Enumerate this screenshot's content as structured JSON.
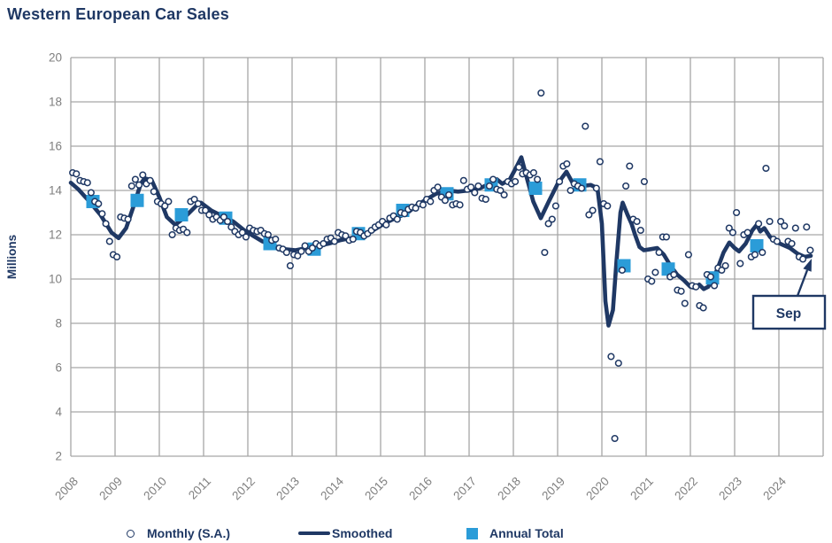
{
  "title": "Western European Car Sales",
  "colors": {
    "navy": "#1f3864",
    "annual_blue": "#2b9cd8",
    "gridline": "#a6a6a6",
    "tick_text": "#7f7f7f",
    "background": "#ffffff"
  },
  "legend": {
    "monthly_label": "Monthly (S.A.)",
    "smoothed_label": "Smoothed",
    "annual_label": "Annual Total"
  },
  "annotation": {
    "label": "Sep",
    "points_to": "2024-09"
  },
  "chart_data": {
    "type": "line",
    "title": "Western European Car Sales",
    "xlabel": "",
    "ylabel": "Millions",
    "grid": true,
    "legend_position": "bottom",
    "y_axis": {
      "min": 2,
      "max": 20,
      "step": 2,
      "ticks": [
        20,
        18,
        16,
        14,
        12,
        10,
        8,
        6,
        4,
        2
      ]
    },
    "x_axis": {
      "year_labels": [
        2008,
        2009,
        2010,
        2011,
        2012,
        2013,
        2014,
        2015,
        2016,
        2017,
        2018,
        2019,
        2020,
        2021,
        2022,
        2023,
        2024
      ],
      "right_edge_year": 2025
    },
    "series": [
      {
        "name": "Monthly (S.A.)",
        "type": "scatter",
        "start": "2008-01",
        "end": "2024-09",
        "frequency": "monthly",
        "values": [
          14.8,
          14.75,
          14.45,
          14.4,
          14.35,
          13.9,
          13.5,
          13.4,
          12.95,
          12.5,
          11.7,
          11.1,
          11.0,
          12.8,
          12.75,
          12.7,
          14.2,
          14.5,
          14.25,
          14.7,
          14.3,
          14.45,
          13.95,
          13.5,
          13.4,
          13.3,
          13.5,
          12.0,
          12.3,
          12.2,
          12.25,
          12.1,
          13.5,
          13.6,
          13.4,
          13.1,
          13.1,
          12.9,
          12.7,
          12.8,
          12.65,
          12.8,
          12.6,
          12.35,
          12.15,
          12.0,
          12.1,
          11.9,
          12.3,
          12.2,
          12.15,
          12.2,
          12.05,
          12.0,
          11.75,
          11.8,
          11.4,
          11.35,
          11.2,
          10.6,
          11.1,
          11.05,
          11.25,
          11.5,
          11.25,
          11.4,
          11.6,
          11.5,
          11.6,
          11.8,
          11.85,
          11.7,
          12.1,
          12.0,
          11.95,
          11.75,
          11.8,
          12.15,
          12.1,
          11.95,
          12.05,
          12.2,
          12.35,
          12.45,
          12.6,
          12.45,
          12.75,
          12.85,
          12.7,
          13.0,
          12.95,
          13.15,
          13.25,
          13.2,
          13.4,
          13.35,
          13.6,
          13.5,
          14.0,
          14.15,
          13.7,
          13.55,
          13.8,
          13.35,
          13.4,
          13.35,
          14.45,
          14.05,
          14.15,
          13.9,
          14.2,
          13.65,
          13.6,
          14.2,
          14.5,
          14.05,
          14.0,
          13.8,
          14.4,
          14.3,
          14.4,
          15.05,
          14.75,
          14.8,
          14.7,
          14.8,
          14.5,
          18.4,
          11.2,
          12.5,
          12.7,
          13.3,
          14.4,
          15.1,
          15.2,
          14.0,
          14.3,
          14.2,
          14.1,
          16.9,
          12.9,
          13.1,
          14.1,
          15.3,
          13.4,
          13.3,
          6.5,
          2.8,
          6.2,
          10.4,
          14.2,
          15.1,
          12.7,
          12.6,
          12.2,
          14.4,
          10.0,
          9.9,
          10.3,
          11.2,
          11.9,
          11.9,
          10.1,
          10.2,
          9.5,
          9.45,
          8.9,
          11.1,
          9.7,
          9.65,
          8.8,
          8.7,
          10.2,
          10.1,
          9.7,
          10.5,
          10.4,
          10.6,
          12.3,
          12.1,
          13.0,
          10.7,
          12.0,
          12.1,
          11.0,
          11.1,
          12.5,
          11.2,
          15.0,
          12.6,
          11.8,
          11.7,
          12.6,
          12.4,
          11.7,
          11.6,
          12.3,
          11.0,
          10.9,
          12.35,
          11.3
        ]
      },
      {
        "name": "Smoothed",
        "type": "line",
        "points": [
          [
            2008.0,
            14.35
          ],
          [
            2008.17,
            14.05
          ],
          [
            2008.42,
            13.5
          ],
          [
            2008.67,
            12.9
          ],
          [
            2008.92,
            12.1
          ],
          [
            2009.08,
            11.85
          ],
          [
            2009.25,
            12.3
          ],
          [
            2009.42,
            13.3
          ],
          [
            2009.58,
            14.3
          ],
          [
            2009.67,
            14.55
          ],
          [
            2009.83,
            14.45
          ],
          [
            2010.0,
            13.7
          ],
          [
            2010.17,
            12.8
          ],
          [
            2010.36,
            12.45
          ],
          [
            2010.58,
            12.8
          ],
          [
            2010.83,
            13.3
          ],
          [
            2010.94,
            13.45
          ],
          [
            2011.17,
            13.1
          ],
          [
            2011.42,
            12.85
          ],
          [
            2011.67,
            12.6
          ],
          [
            2011.92,
            12.2
          ],
          [
            2012.08,
            12.0
          ],
          [
            2012.33,
            11.7
          ],
          [
            2012.58,
            11.5
          ],
          [
            2012.83,
            11.35
          ],
          [
            2013.08,
            11.3
          ],
          [
            2013.33,
            11.4
          ],
          [
            2013.58,
            11.5
          ],
          [
            2013.83,
            11.6
          ],
          [
            2014.08,
            11.75
          ],
          [
            2014.33,
            11.85
          ],
          [
            2014.58,
            12.0
          ],
          [
            2014.83,
            12.2
          ],
          [
            2015.08,
            12.5
          ],
          [
            2015.33,
            12.75
          ],
          [
            2015.58,
            12.95
          ],
          [
            2015.83,
            13.35
          ],
          [
            2016.0,
            13.55
          ],
          [
            2016.25,
            13.85
          ],
          [
            2016.5,
            14.0
          ],
          [
            2016.75,
            13.95
          ],
          [
            2017.0,
            14.0
          ],
          [
            2017.25,
            14.1
          ],
          [
            2017.5,
            14.35
          ],
          [
            2017.63,
            14.5
          ],
          [
            2017.75,
            14.3
          ],
          [
            2017.92,
            14.5
          ],
          [
            2018.08,
            15.1
          ],
          [
            2018.18,
            15.5
          ],
          [
            2018.3,
            14.6
          ],
          [
            2018.45,
            13.5
          ],
          [
            2018.62,
            12.75
          ],
          [
            2018.8,
            13.5
          ],
          [
            2019.0,
            14.3
          ],
          [
            2019.2,
            14.85
          ],
          [
            2019.35,
            14.3
          ],
          [
            2019.55,
            14.2
          ],
          [
            2019.75,
            14.25
          ],
          [
            2019.9,
            14.1
          ],
          [
            2020.0,
            12.5
          ],
          [
            2020.08,
            9.0
          ],
          [
            2020.15,
            7.9
          ],
          [
            2020.25,
            8.6
          ],
          [
            2020.33,
            10.8
          ],
          [
            2020.42,
            13.0
          ],
          [
            2020.47,
            13.45
          ],
          [
            2020.58,
            12.9
          ],
          [
            2020.67,
            12.5
          ],
          [
            2020.75,
            12.0
          ],
          [
            2020.85,
            11.45
          ],
          [
            2020.95,
            11.3
          ],
          [
            2021.1,
            11.35
          ],
          [
            2021.25,
            11.4
          ],
          [
            2021.4,
            11.1
          ],
          [
            2021.55,
            10.6
          ],
          [
            2021.7,
            10.2
          ],
          [
            2021.85,
            9.95
          ],
          [
            2022.0,
            9.65
          ],
          [
            2022.1,
            9.6
          ],
          [
            2022.2,
            9.75
          ],
          [
            2022.3,
            9.55
          ],
          [
            2022.4,
            9.65
          ],
          [
            2022.5,
            9.95
          ],
          [
            2022.62,
            10.5
          ],
          [
            2022.75,
            11.2
          ],
          [
            2022.88,
            11.65
          ],
          [
            2023.0,
            11.4
          ],
          [
            2023.1,
            11.25
          ],
          [
            2023.25,
            11.6
          ],
          [
            2023.4,
            12.2
          ],
          [
            2023.5,
            12.45
          ],
          [
            2023.58,
            12.15
          ],
          [
            2023.67,
            12.3
          ],
          [
            2023.8,
            11.9
          ],
          [
            2023.92,
            11.7
          ],
          [
            2024.08,
            11.55
          ],
          [
            2024.25,
            11.4
          ],
          [
            2024.42,
            11.15
          ],
          [
            2024.58,
            11.0
          ],
          [
            2024.72,
            11.05
          ]
        ]
      },
      {
        "name": "Annual Total",
        "type": "scatter-square",
        "years": [
          2008,
          2009,
          2010,
          2011,
          2012,
          2013,
          2014,
          2015,
          2016,
          2017,
          2018,
          2019,
          2020,
          2021,
          2022,
          2023
        ],
        "values": [
          13.5,
          13.55,
          12.9,
          12.75,
          11.6,
          11.35,
          12.05,
          13.1,
          13.85,
          14.25,
          14.1,
          14.25,
          10.6,
          10.45,
          10.05,
          11.5
        ]
      }
    ]
  }
}
